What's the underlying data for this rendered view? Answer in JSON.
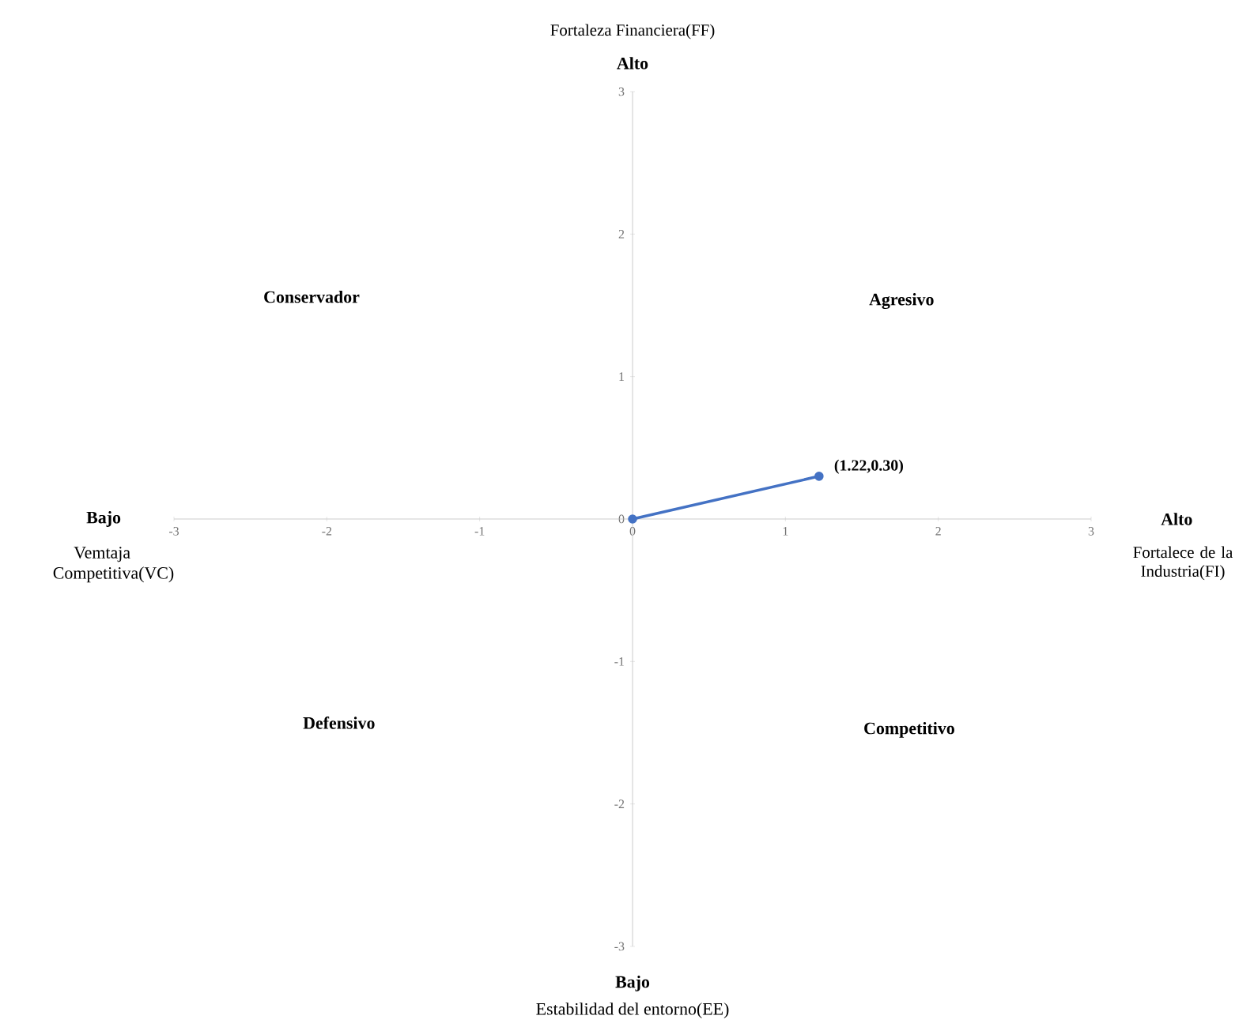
{
  "chart_data": {
    "type": "line",
    "xlabel": "Fortalece de la Industria(FI)",
    "ylabel": "Fortaleza Financiera(FF)",
    "x": [
      0,
      1.22
    ],
    "series": [
      {
        "values": [
          0,
          0.3
        ],
        "color": "#4472c4"
      }
    ],
    "marker": "circle",
    "line_style": "solid",
    "xlim": [
      -3,
      3
    ],
    "ylim": [
      -3,
      3
    ],
    "xticks": [
      -3,
      -2,
      -1,
      0,
      1,
      2,
      3
    ],
    "yticks": [
      -3,
      -2,
      -1,
      0,
      1,
      2,
      3
    ],
    "grid": false,
    "annotations": [
      "Alto",
      "Bajo",
      "Bajo",
      "Alto",
      "Vemtaja Competitiva(VC)",
      "Estabilidad del entorno(EE)",
      "Conservador",
      "Agresivo",
      "Defensivo",
      "Competitivo",
      {
        "text": "(1.22,0.30)",
        "x": 1.22,
        "y": 0.3
      }
    ]
  }
}
